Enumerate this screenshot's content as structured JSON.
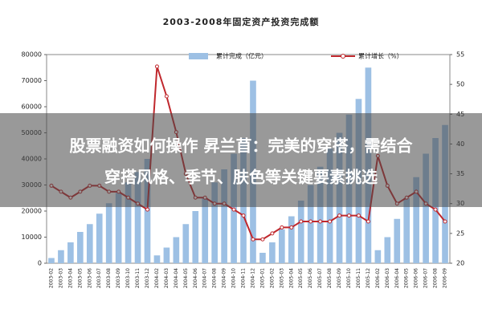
{
  "chart_data": {
    "type": "bar_line",
    "title": "2003-2008年固定资产投资完成额",
    "categories": [
      "2003-02",
      "2003-03",
      "2003-04",
      "2003-05",
      "2003-06",
      "2003-07",
      "2003-08",
      "2003-09",
      "2003-10",
      "2003-11",
      "2003-12",
      "2004-02",
      "2004-03",
      "2004-04",
      "2004-05",
      "2004-06",
      "2004-07",
      "2004-08",
      "2004-09",
      "2004-10",
      "2004-11",
      "2004-12",
      "2005-01",
      "2005-02",
      "2005-03",
      "2005-04",
      "2005-05",
      "2005-06",
      "2005-07",
      "2005-08",
      "2005-09",
      "2005-10",
      "2005-11",
      "2005-12",
      "2006-02",
      "2006-03",
      "2006-04",
      "2006-05",
      "2006-06",
      "2006-07",
      "2006-08",
      "2006-09"
    ],
    "series": [
      {
        "name": "累计完成（亿元）",
        "color": "#9dc0e4",
        "values": [
          2000,
          5000,
          8000,
          12000,
          15000,
          19000,
          23000,
          27000,
          31000,
          35000,
          40000,
          3000,
          6000,
          10000,
          15000,
          20000,
          25000,
          31000,
          36000,
          42000,
          48000,
          70000,
          4000,
          8000,
          13000,
          18000,
          24000,
          30000,
          37000,
          44000,
          50000,
          57000,
          63000,
          75000,
          5000,
          10000,
          17000,
          25000,
          33000,
          42000,
          48000,
          53000
        ]
      },
      {
        "name": "累计增长（%）",
        "color": "#c0282d",
        "axis": "y2",
        "values": [
          33,
          32,
          31,
          32,
          33,
          33,
          32,
          32,
          31,
          30,
          29,
          53,
          48,
          42,
          35,
          31,
          31,
          30,
          30,
          29,
          28,
          24,
          24,
          25,
          26,
          26,
          27,
          27,
          27,
          27,
          28,
          28,
          28,
          27,
          38,
          33,
          30,
          31,
          32,
          30,
          29,
          27
        ]
      }
    ],
    "ylim": [
      0,
      80000
    ],
    "yticks": [
      0,
      10000,
      20000,
      30000,
      40000,
      50000,
      60000,
      70000,
      80000
    ],
    "y2lim": [
      20,
      55
    ],
    "y2ticks": [
      20,
      25,
      30,
      35,
      40,
      45,
      50,
      55
    ],
    "legend": "top"
  },
  "banner": {
    "lines": [
      "股票融资如何操作 昇兰苜：完美的穿搭，需结合",
      "穿搭风格、季节、肤色等关键要素挑选"
    ]
  }
}
